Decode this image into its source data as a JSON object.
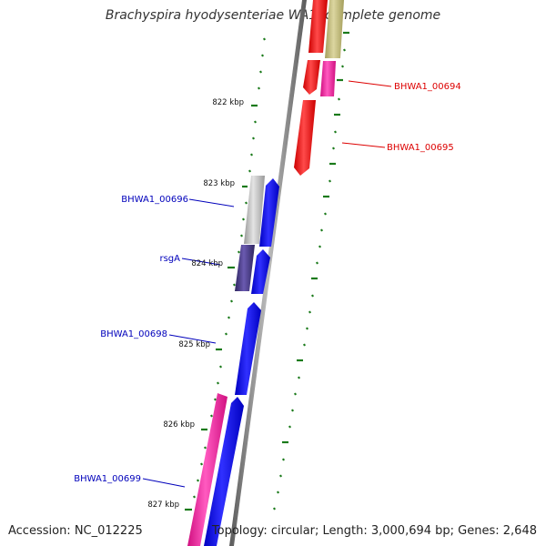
{
  "title": "Brachyspira hyodysenteriae WA1, complete genome",
  "accession": "Accession: NC_012225",
  "topology": "Topology: circular; Length: 3,000,694 bp; Genes: 2,648",
  "ticks": [
    "822 kbp",
    "823 kbp",
    "824 kbp",
    "825 kbp",
    "826 kbp",
    "827 kbp"
  ],
  "gene_labels": {
    "forward": [
      "BHWA1_00694",
      "BHWA1_00695"
    ],
    "reverse": [
      "BHWA1_00696",
      "rsgA",
      "BHWA1_00698",
      "BHWA1_00699"
    ]
  },
  "colors": {
    "forward_label": "#dd0000",
    "reverse_label": "#0000bb",
    "backbone": "#888888",
    "tick": "#1a7a1a",
    "red": "#ff0000",
    "olive": "#c8c080",
    "magenta": "#ff22aa",
    "gray": "#bbbbbb",
    "blue": "#0000ff",
    "purple": "#4a3d8f"
  }
}
